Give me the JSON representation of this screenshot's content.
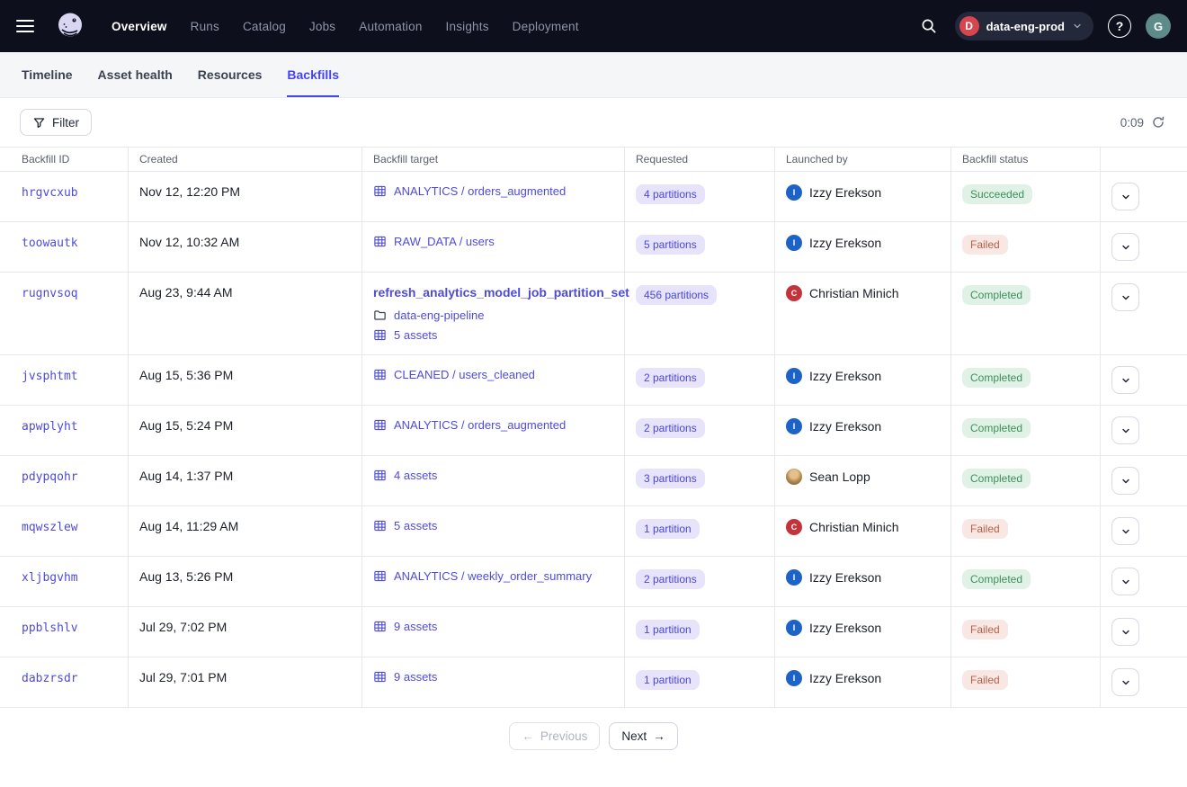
{
  "nav": {
    "items": [
      {
        "label": "Overview",
        "active": true
      },
      {
        "label": "Runs",
        "active": false
      },
      {
        "label": "Catalog",
        "active": false
      },
      {
        "label": "Jobs",
        "active": false
      },
      {
        "label": "Automation",
        "active": false
      },
      {
        "label": "Insights",
        "active": false
      },
      {
        "label": "Deployment",
        "active": false
      }
    ],
    "deployment": {
      "label": "data-eng-prod",
      "initial": "D",
      "initial_color": "#D9454E"
    },
    "help_label": "?",
    "avatar_initial": "G"
  },
  "tabs": [
    {
      "label": "Timeline",
      "active": false
    },
    {
      "label": "Asset health",
      "active": false
    },
    {
      "label": "Resources",
      "active": false
    },
    {
      "label": "Backfills",
      "active": true
    }
  ],
  "toolbar": {
    "filter_label": "Filter",
    "timer": "0:09"
  },
  "table": {
    "columns": [
      "Backfill ID",
      "Created",
      "Backfill target",
      "Requested",
      "Launched by",
      "Backfill status",
      ""
    ],
    "rows": [
      {
        "id": "hrgvcxub",
        "created": "Nov 12, 12:20 PM",
        "target": {
          "kind": "asset",
          "link": "ANALYTICS / orders_augmented"
        },
        "requested": "4 partitions",
        "launched_by": {
          "name": "Izzy Erekson",
          "initial": "I",
          "color": "#1D63C6",
          "avatar": "initial"
        },
        "status": {
          "label": "Succeeded",
          "kind": "success"
        }
      },
      {
        "id": "toowautk",
        "created": "Nov 12, 10:32 AM",
        "target": {
          "kind": "asset",
          "link": "RAW_DATA / users"
        },
        "requested": "5 partitions",
        "launched_by": {
          "name": "Izzy Erekson",
          "initial": "I",
          "color": "#1D63C6",
          "avatar": "initial"
        },
        "status": {
          "label": "Failed",
          "kind": "fail"
        }
      },
      {
        "id": "rugnvsoq",
        "created": "Aug 23, 9:44 AM",
        "target": {
          "kind": "job",
          "link": "refresh_analytics_model_job_partition_set",
          "repo": "data-eng-pipeline",
          "assets": "5 assets"
        },
        "requested": "456 partitions",
        "launched_by": {
          "name": "Christian Minich",
          "initial": "C",
          "color": "#C2333C",
          "avatar": "initial"
        },
        "status": {
          "label": "Completed",
          "kind": "success"
        }
      },
      {
        "id": "jvsphtmt",
        "created": "Aug 15, 5:36 PM",
        "target": {
          "kind": "asset",
          "link": "CLEANED / users_cleaned"
        },
        "requested": "2 partitions",
        "launched_by": {
          "name": "Izzy Erekson",
          "initial": "I",
          "color": "#1D63C6",
          "avatar": "initial"
        },
        "status": {
          "label": "Completed",
          "kind": "success"
        }
      },
      {
        "id": "apwplyht",
        "created": "Aug 15, 5:24 PM",
        "target": {
          "kind": "asset",
          "link": "ANALYTICS / orders_augmented"
        },
        "requested": "2 partitions",
        "launched_by": {
          "name": "Izzy Erekson",
          "initial": "I",
          "color": "#1D63C6",
          "avatar": "initial"
        },
        "status": {
          "label": "Completed",
          "kind": "success"
        }
      },
      {
        "id": "pdypqohr",
        "created": "Aug 14, 1:37 PM",
        "target": {
          "kind": "asset",
          "link": "4 assets"
        },
        "requested": "3 partitions",
        "launched_by": {
          "name": "Sean Lopp",
          "initial": "",
          "color": "",
          "avatar": "photo"
        },
        "status": {
          "label": "Completed",
          "kind": "success"
        }
      },
      {
        "id": "mqwszlew",
        "created": "Aug 14, 11:29 AM",
        "target": {
          "kind": "asset",
          "link": "5 assets"
        },
        "requested": "1 partition",
        "launched_by": {
          "name": "Christian Minich",
          "initial": "C",
          "color": "#C2333C",
          "avatar": "initial"
        },
        "status": {
          "label": "Failed",
          "kind": "fail"
        }
      },
      {
        "id": "xljbgvhm",
        "created": "Aug 13, 5:26 PM",
        "target": {
          "kind": "asset",
          "link": "ANALYTICS / weekly_order_summary"
        },
        "requested": "2 partitions",
        "launched_by": {
          "name": "Izzy Erekson",
          "initial": "I",
          "color": "#1D63C6",
          "avatar": "initial"
        },
        "status": {
          "label": "Completed",
          "kind": "success"
        }
      },
      {
        "id": "ppblshlv",
        "created": "Jul 29, 7:02 PM",
        "target": {
          "kind": "asset",
          "link": "9 assets"
        },
        "requested": "1 partition",
        "launched_by": {
          "name": "Izzy Erekson",
          "initial": "I",
          "color": "#1D63C6",
          "avatar": "initial"
        },
        "status": {
          "label": "Failed",
          "kind": "fail"
        }
      },
      {
        "id": "dabzrsdr",
        "created": "Jul 29, 7:01 PM",
        "target": {
          "kind": "asset",
          "link": "9 assets"
        },
        "requested": "1 partition",
        "launched_by": {
          "name": "Izzy Erekson",
          "initial": "I",
          "color": "#1D63C6",
          "avatar": "initial"
        },
        "status": {
          "label": "Failed",
          "kind": "fail"
        }
      }
    ]
  },
  "pagination": {
    "previous_label": "Previous",
    "next_label": "Next"
  },
  "colors": {
    "nav_bg": "#0D0F1C",
    "accent": "#4645E7",
    "link": "#4E4BD9",
    "partitions_badge_bg": "#E6E3FA",
    "partitions_badge_text": "#4B48D6",
    "success_badge_bg": "#DFF2E5",
    "success_badge_text": "#3E8E5C",
    "fail_badge_bg": "#F8E7E2",
    "fail_badge_text": "#B36049"
  }
}
